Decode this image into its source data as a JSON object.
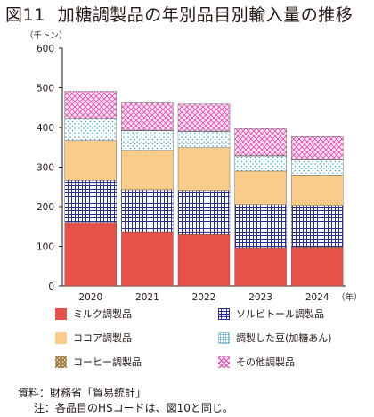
{
  "title": {
    "figure": "図11",
    "text": "加糖調製品の年別品目別輸入量の推移"
  },
  "chart_data": {
    "type": "bar",
    "stacked": true,
    "unit_label": "（千トン）",
    "x_unit": "（年）",
    "categories": [
      "2020",
      "2021",
      "2022",
      "2023",
      "2024"
    ],
    "ylim": [
      0,
      600
    ],
    "yticks": [
      0,
      100,
      200,
      300,
      400,
      500,
      600
    ],
    "series": [
      {
        "name": "ミルク調製品",
        "values": [
          160,
          137,
          130,
          97,
          98
        ],
        "color": "#e8504a",
        "pattern": "solid"
      },
      {
        "name": "ソルビトール調製品",
        "values": [
          107,
          106,
          111,
          108,
          105
        ],
        "color": "#2e2e8f",
        "pattern": "grid"
      },
      {
        "name": "ココア調製品",
        "values": [
          100,
          99,
          108,
          85,
          77
        ],
        "color": "#f9cc8a",
        "pattern": "solid"
      },
      {
        "name": "調製した豆(加糖あん)",
        "values": [
          55,
          50,
          41,
          38,
          38
        ],
        "color": "#5bb7c9",
        "pattern": "dots"
      },
      {
        "name": "コーヒー調製品",
        "values": [
          1,
          1,
          1,
          1,
          1
        ],
        "color": "#b59662",
        "pattern": "hatch"
      },
      {
        "name": "その他調製品",
        "values": [
          68,
          69,
          68,
          68,
          58
        ],
        "color": "#d94fb0",
        "pattern": "cross"
      }
    ]
  },
  "notes": {
    "source": "資料：財務省「貿易統計」",
    "note": "注：各品目のHSコードは、図10と同じ。"
  }
}
